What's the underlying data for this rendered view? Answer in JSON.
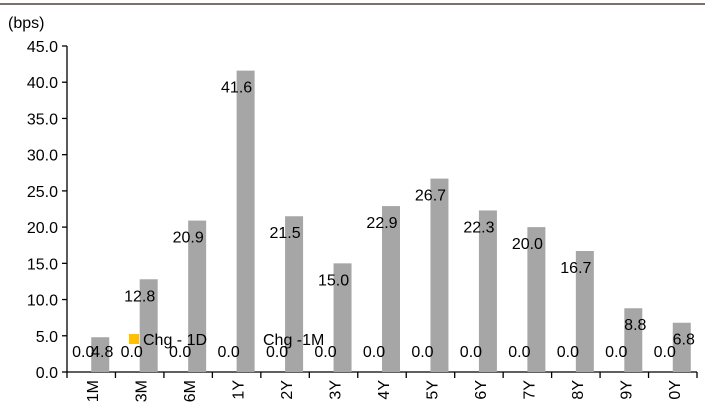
{
  "chart_data": {
    "type": "bar",
    "unit_label": "(bps)",
    "categories": [
      "1M",
      "3M",
      "6M",
      "1Y",
      "2Y",
      "3Y",
      "4Y",
      "5Y",
      "6Y",
      "7Y",
      "8Y",
      "9Y",
      "0Y"
    ],
    "series": [
      {
        "name": "Chg - 1D",
        "color": "#ffc000",
        "values": [
          0.0,
          0.0,
          0.0,
          0.0,
          0.0,
          0.0,
          0.0,
          0.0,
          0.0,
          0.0,
          0.0,
          0.0,
          0.0
        ],
        "labels": [
          "0.0",
          "0.0",
          "0.0",
          "0.0",
          "0.0",
          "0.0",
          "0.0",
          "0.0",
          "0.0",
          "0.0",
          "0.0",
          "0.0",
          "0.0"
        ]
      },
      {
        "name": "Chg -1M",
        "color": "#a6a6a6",
        "values": [
          4.8,
          12.8,
          20.9,
          41.6,
          21.5,
          15.0,
          22.9,
          26.7,
          22.3,
          20.0,
          16.7,
          8.8,
          6.8
        ],
        "labels": [
          "4.8",
          "12.8",
          "20.9",
          "41.6",
          "21.5",
          "15.0",
          "22.9",
          "26.7",
          "22.3",
          "20.0",
          "16.7",
          "8.8",
          "6.8"
        ]
      }
    ],
    "ylim": [
      0,
      45
    ],
    "yticks": [
      "0.0",
      "5.0",
      "10.0",
      "15.0",
      "20.0",
      "25.0",
      "30.0",
      "35.0",
      "40.0",
      "45.0"
    ],
    "grid": false,
    "legend": "inside bottom-left",
    "top_rule_color": "#7f6f6a"
  }
}
